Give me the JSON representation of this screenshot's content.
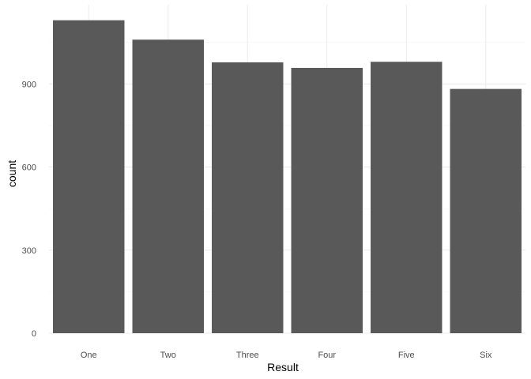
{
  "chart_data": {
    "type": "bar",
    "categories": [
      "One",
      "Two",
      "Three",
      "Four",
      "Five",
      "Six"
    ],
    "values": [
      1130,
      1060,
      978,
      958,
      980,
      882
    ],
    "xlabel": "Result",
    "ylabel": "count",
    "ylim": [
      0,
      1186
    ],
    "yticks": [
      0,
      300,
      600,
      900
    ],
    "ytick_labels": [
      "0",
      "300",
      "600",
      "900"
    ],
    "grid": true,
    "legend": "none",
    "bar_color": "#595959",
    "grid_color": "#ebebeb",
    "background": "#ffffff"
  }
}
